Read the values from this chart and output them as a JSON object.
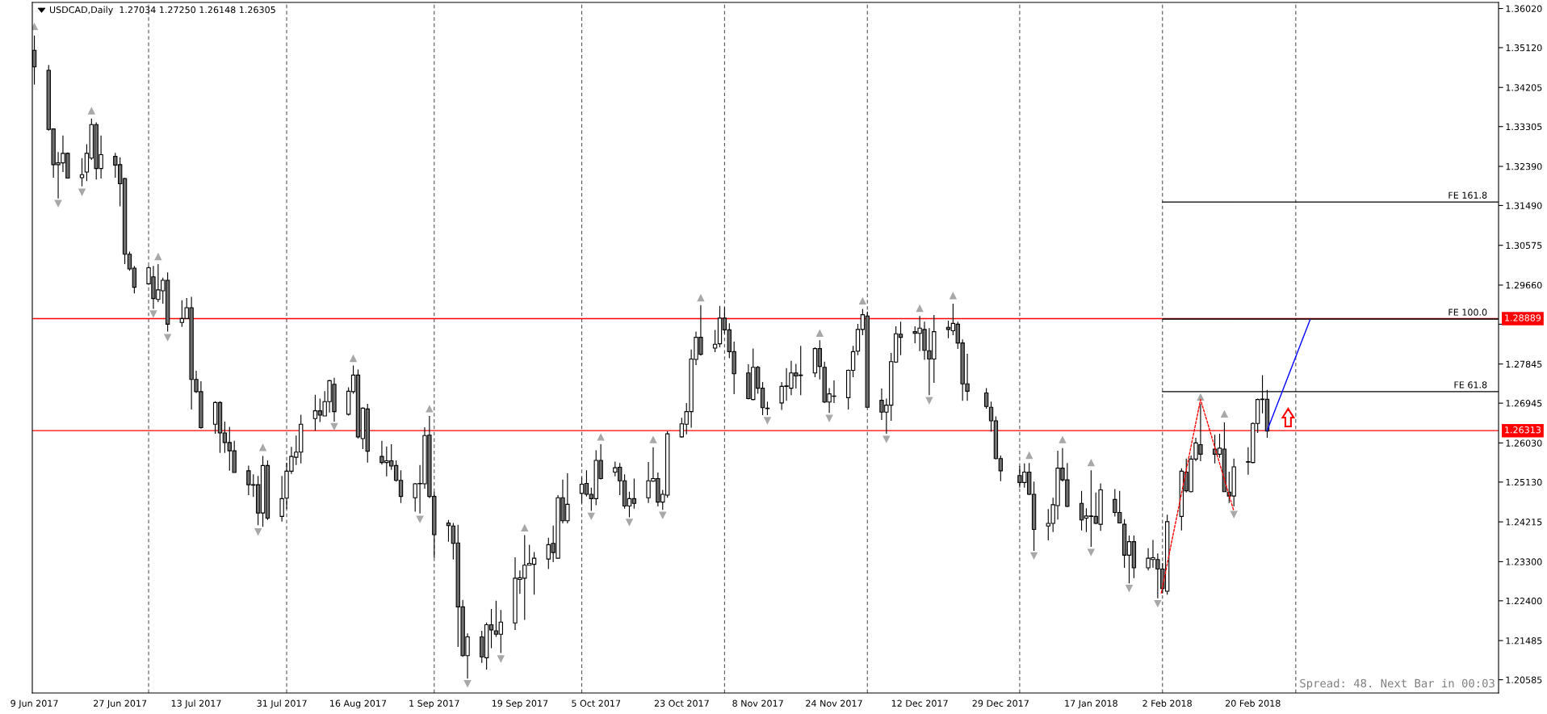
{
  "chart_data": {
    "type": "candlestick",
    "title": "USDCAD,Daily  1.27034 1.27250 1.26148 1.26305",
    "annotations": [
      "Spread: 48. Next Bar in 00:03"
    ],
    "x": [
      "2017-06-09",
      "2017-06-12",
      "2017-06-13",
      "2017-06-14",
      "2017-06-15",
      "2017-06-16",
      "2017-06-19",
      "2017-06-20",
      "2017-06-21",
      "2017-06-22",
      "2017-06-23",
      "2017-06-26",
      "2017-06-27",
      "2017-06-28",
      "2017-06-29",
      "2017-06-30",
      "2017-07-03",
      "2017-07-04",
      "2017-07-05",
      "2017-07-06",
      "2017-07-07",
      "2017-07-10",
      "2017-07-11",
      "2017-07-12",
      "2017-07-13",
      "2017-07-14",
      "2017-07-17",
      "2017-07-18",
      "2017-07-19",
      "2017-07-20",
      "2017-07-21",
      "2017-07-24",
      "2017-07-25",
      "2017-07-26",
      "2017-07-27",
      "2017-07-28",
      "2017-07-31",
      "2017-08-01",
      "2017-08-02",
      "2017-08-03",
      "2017-08-04",
      "2017-08-07",
      "2017-08-08",
      "2017-08-09",
      "2017-08-10",
      "2017-08-11",
      "2017-08-14",
      "2017-08-15",
      "2017-08-16",
      "2017-08-17",
      "2017-08-18",
      "2017-08-21",
      "2017-08-22",
      "2017-08-23",
      "2017-08-24",
      "2017-08-25",
      "2017-08-28",
      "2017-08-29",
      "2017-08-30",
      "2017-08-31",
      "2017-09-01",
      "2017-09-04",
      "2017-09-05",
      "2017-09-06",
      "2017-09-07",
      "2017-09-08",
      "2017-09-11",
      "2017-09-12",
      "2017-09-13",
      "2017-09-14",
      "2017-09-15",
      "2017-09-18",
      "2017-09-19",
      "2017-09-20",
      "2017-09-21",
      "2017-09-22",
      "2017-09-25",
      "2017-09-26",
      "2017-09-27",
      "2017-09-28",
      "2017-09-29",
      "2017-10-02",
      "2017-10-03",
      "2017-10-04",
      "2017-10-05",
      "2017-10-06",
      "2017-10-09",
      "2017-10-10",
      "2017-10-11",
      "2017-10-12",
      "2017-10-13",
      "2017-10-16",
      "2017-10-17",
      "2017-10-18",
      "2017-10-19",
      "2017-10-20",
      "2017-10-23",
      "2017-10-24",
      "2017-10-25",
      "2017-10-26",
      "2017-10-27",
      "2017-10-30",
      "2017-10-31",
      "2017-11-01",
      "2017-11-02",
      "2017-11-03",
      "2017-11-06",
      "2017-11-07",
      "2017-11-08",
      "2017-11-09",
      "2017-11-10",
      "2017-11-13",
      "2017-11-14",
      "2017-11-15",
      "2017-11-16",
      "2017-11-17",
      "2017-11-20",
      "2017-11-21",
      "2017-11-22",
      "2017-11-23",
      "2017-11-24",
      "2017-11-27",
      "2017-11-28",
      "2017-11-29",
      "2017-11-30",
      "2017-12-01",
      "2017-12-04",
      "2017-12-05",
      "2017-12-06",
      "2017-12-07",
      "2017-12-08",
      "2017-12-11",
      "2017-12-12",
      "2017-12-13",
      "2017-12-14",
      "2017-12-15",
      "2017-12-18",
      "2017-12-19",
      "2017-12-20",
      "2017-12-21",
      "2017-12-22",
      "2017-12-26",
      "2017-12-27",
      "2017-12-28",
      "2017-12-29",
      "2018-01-02",
      "2018-01-03",
      "2018-01-04",
      "2018-01-05",
      "2018-01-08",
      "2018-01-09",
      "2018-01-10",
      "2018-01-11",
      "2018-01-12",
      "2018-01-15",
      "2018-01-16",
      "2018-01-17",
      "2018-01-18",
      "2018-01-19",
      "2018-01-22",
      "2018-01-23",
      "2018-01-24",
      "2018-01-25",
      "2018-01-26",
      "2018-01-29",
      "2018-01-30",
      "2018-01-31",
      "2018-02-01",
      "2018-02-02",
      "2018-02-05",
      "2018-02-06",
      "2018-02-07",
      "2018-02-08",
      "2018-02-09",
      "2018-02-12",
      "2018-02-13",
      "2018-02-14",
      "2018-02-15",
      "2018-02-16",
      "2018-02-19",
      "2018-02-20",
      "2018-02-21",
      "2018-02-22",
      "2018-02-23"
    ],
    "ohlc": [
      [
        1.3506,
        1.354,
        1.3427,
        1.3468
      ],
      [
        1.346,
        1.3472,
        1.3321,
        1.3324
      ],
      [
        1.3325,
        1.3326,
        1.3213,
        1.3243
      ],
      [
        1.3243,
        1.3272,
        1.3165,
        1.3247
      ],
      [
        1.3247,
        1.331,
        1.3226,
        1.3269
      ],
      [
        1.3269,
        1.3271,
        1.3211,
        1.3212
      ],
      [
        1.3213,
        1.3258,
        1.3193,
        1.322
      ],
      [
        1.3226,
        1.329,
        1.3205,
        1.3269
      ],
      [
        1.3258,
        1.3349,
        1.3254,
        1.3335
      ],
      [
        1.3335,
        1.334,
        1.3209,
        1.3234
      ],
      [
        1.3234,
        1.331,
        1.3211,
        1.3266
      ],
      [
        1.3262,
        1.327,
        1.3213,
        1.3242
      ],
      [
        1.3243,
        1.326,
        1.3147,
        1.3199
      ],
      [
        1.3211,
        1.3213,
        1.3014,
        1.3037
      ],
      [
        1.3037,
        1.3043,
        1.2999,
        1.3003
      ],
      [
        1.3005,
        1.301,
        1.2947,
        1.2961
      ],
      [
        1.2969,
        1.301,
        1.2967,
        1.3006
      ],
      [
        1.2985,
        1.301,
        1.2911,
        1.2935
      ],
      [
        1.2933,
        1.3014,
        1.2927,
        1.2955
      ],
      [
        1.2953,
        1.2983,
        1.2923,
        1.2977
      ],
      [
        1.2977,
        1.2995,
        1.2859,
        1.2876
      ],
      [
        1.288,
        1.2931,
        1.287,
        1.2889
      ],
      [
        1.2889,
        1.2936,
        1.2888,
        1.2914
      ],
      [
        1.2914,
        1.2939,
        1.268,
        1.2749
      ],
      [
        1.2749,
        1.2769,
        1.2718,
        1.2721
      ],
      [
        1.2721,
        1.2745,
        1.2636,
        1.2638
      ],
      [
        1.2646,
        1.2699,
        1.2624,
        1.2696
      ],
      [
        1.2696,
        1.2699,
        1.258,
        1.2626
      ],
      [
        1.2626,
        1.2652,
        1.258,
        1.2604
      ],
      [
        1.2604,
        1.264,
        1.2539,
        1.2585
      ],
      [
        1.2585,
        1.2608,
        1.2534,
        1.2535
      ],
      [
        1.2539,
        1.2551,
        1.2483,
        1.2507
      ],
      [
        1.2507,
        1.2531,
        1.2479,
        1.2506
      ],
      [
        1.2507,
        1.2527,
        1.2414,
        1.2442
      ],
      [
        1.2442,
        1.2573,
        1.241,
        1.2551
      ],
      [
        1.2551,
        1.2563,
        1.2426,
        1.243
      ],
      [
        1.2434,
        1.2527,
        1.2422,
        1.2475
      ],
      [
        1.2476,
        1.2558,
        1.2451,
        1.2538
      ],
      [
        1.2538,
        1.2594,
        1.2532,
        1.2572
      ],
      [
        1.257,
        1.262,
        1.2552,
        1.2582
      ],
      [
        1.2582,
        1.2668,
        1.2556,
        1.2646
      ],
      [
        1.2659,
        1.2714,
        1.2631,
        1.2677
      ],
      [
        1.2677,
        1.2705,
        1.2651,
        1.2667
      ],
      [
        1.2665,
        1.2722,
        1.2664,
        1.2698
      ],
      [
        1.2698,
        1.2748,
        1.2673,
        1.2746
      ],
      [
        1.2738,
        1.2753,
        1.2652,
        1.2675
      ],
      [
        1.2669,
        1.2731,
        1.2666,
        1.2722
      ],
      [
        1.2721,
        1.2781,
        1.2716,
        1.2759
      ],
      [
        1.2759,
        1.2772,
        1.2613,
        1.2617
      ],
      [
        1.2613,
        1.2685,
        1.2589,
        1.2683
      ],
      [
        1.2681,
        1.2693,
        1.2558,
        1.2584
      ],
      [
        1.2572,
        1.2608,
        1.2553,
        1.2558
      ],
      [
        1.2558,
        1.2595,
        1.2526,
        1.2562
      ],
      [
        1.2562,
        1.26,
        1.2541,
        1.255
      ],
      [
        1.2551,
        1.2563,
        1.2514,
        1.2517
      ],
      [
        1.2517,
        1.254,
        1.2465,
        1.248
      ],
      [
        1.2477,
        1.2511,
        1.2445,
        1.2509
      ],
      [
        1.251,
        1.2552,
        1.2441,
        1.2509
      ],
      [
        1.2509,
        1.2639,
        1.2498,
        1.262
      ],
      [
        1.2621,
        1.2665,
        1.2476,
        1.248
      ],
      [
        1.248,
        1.2491,
        1.2339,
        1.2392
      ],
      [
        1.2419,
        1.2426,
        1.2376,
        1.2413
      ],
      [
        1.2412,
        1.2419,
        1.2335,
        1.2372
      ],
      [
        1.2373,
        1.2415,
        1.2134,
        1.2226
      ],
      [
        1.2226,
        1.2242,
        1.2111,
        1.2114
      ],
      [
        1.2114,
        1.2165,
        1.2061,
        1.2157
      ],
      [
        1.2157,
        1.2171,
        1.2097,
        1.2111
      ],
      [
        1.2109,
        1.219,
        1.2082,
        1.2185
      ],
      [
        1.2185,
        1.2221,
        1.2131,
        1.2173
      ],
      [
        1.2171,
        1.224,
        1.2157,
        1.2163
      ],
      [
        1.2163,
        1.2219,
        1.212,
        1.2191
      ],
      [
        1.2189,
        1.234,
        1.2173,
        1.2292
      ],
      [
        1.2289,
        1.231,
        1.2256,
        1.2293
      ],
      [
        1.2292,
        1.2391,
        1.2196,
        1.2322
      ],
      [
        1.2322,
        1.2369,
        1.2321,
        1.2326
      ],
      [
        1.2324,
        1.2352,
        1.2254,
        1.2338
      ],
      [
        1.2336,
        1.2385,
        1.2313,
        1.2369
      ],
      [
        1.2372,
        1.2413,
        1.2329,
        1.2351
      ],
      [
        1.2338,
        1.2483,
        1.2338,
        1.2477
      ],
      [
        1.2477,
        1.2519,
        1.2418,
        1.2424
      ],
      [
        1.2424,
        1.2533,
        1.2418,
        1.2462
      ],
      [
        1.2487,
        1.2524,
        1.2464,
        1.2508
      ],
      [
        1.251,
        1.254,
        1.248,
        1.2485
      ],
      [
        1.2485,
        1.25,
        1.2447,
        1.2475
      ],
      [
        1.2475,
        1.2586,
        1.246,
        1.2563
      ],
      [
        1.2563,
        1.26,
        1.2519,
        1.2521
      ],
      [
        1.2536,
        1.256,
        1.2526,
        1.2546
      ],
      [
        1.2547,
        1.2557,
        1.2483,
        1.2516
      ],
      [
        1.2516,
        1.2531,
        1.2452,
        1.2458
      ],
      [
        1.2458,
        1.2491,
        1.2432,
        1.2475
      ],
      [
        1.2475,
        1.2521,
        1.2452,
        1.2464
      ],
      [
        1.2477,
        1.2559,
        1.2465,
        1.2516
      ],
      [
        1.2515,
        1.2593,
        1.2513,
        1.2521
      ],
      [
        1.2521,
        1.2535,
        1.2457,
        1.2467
      ],
      [
        1.2467,
        1.2495,
        1.2449,
        1.2485
      ],
      [
        1.2483,
        1.263,
        1.2477,
        1.2624
      ],
      [
        1.2617,
        1.2661,
        1.2615,
        1.2647
      ],
      [
        1.2646,
        1.2695,
        1.2623,
        1.2675
      ],
      [
        1.2675,
        1.2818,
        1.2638,
        1.2796
      ],
      [
        1.2795,
        1.2859,
        1.2782,
        1.2846
      ],
      [
        1.2846,
        1.292,
        1.2804,
        1.2807
      ],
      [
        1.2821,
        1.2863,
        1.2812,
        1.283
      ],
      [
        1.2831,
        1.2918,
        1.2823,
        1.289
      ],
      [
        1.289,
        1.2915,
        1.2854,
        1.2863
      ],
      [
        1.2863,
        1.2878,
        1.2798,
        1.2813
      ],
      [
        1.2813,
        1.2836,
        1.2715,
        1.2762
      ],
      [
        1.2764,
        1.2784,
        1.2703,
        1.2705
      ],
      [
        1.2703,
        1.282,
        1.2701,
        1.2777
      ],
      [
        1.2777,
        1.278,
        1.2716,
        1.2729
      ],
      [
        1.2729,
        1.2743,
        1.2667,
        1.2684
      ],
      [
        1.2683,
        1.2698,
        1.2667,
        1.2682
      ],
      [
        1.2695,
        1.2743,
        1.2679,
        1.2733
      ],
      [
        1.2733,
        1.2775,
        1.27,
        1.2734
      ],
      [
        1.2729,
        1.2792,
        1.2713,
        1.2764
      ],
      [
        1.2764,
        1.2785,
        1.2728,
        1.2757
      ],
      [
        1.2759,
        1.2826,
        1.2713,
        1.2758
      ],
      [
        1.2764,
        1.2823,
        1.2754,
        1.282
      ],
      [
        1.282,
        1.2839,
        1.2749,
        1.2779
      ],
      [
        1.2777,
        1.279,
        1.2695,
        1.2697
      ],
      [
        1.2697,
        1.2729,
        1.2672,
        1.2716
      ],
      [
        1.2711,
        1.2747,
        1.2695,
        1.271
      ],
      [
        1.2707,
        1.2772,
        1.268,
        1.277
      ],
      [
        1.277,
        1.2826,
        1.2754,
        1.2813
      ],
      [
        1.2814,
        1.2877,
        1.2805,
        1.2864
      ],
      [
        1.2864,
        1.2911,
        1.2851,
        1.2898
      ],
      [
        1.2895,
        1.2905,
        1.2684,
        1.2685
      ],
      [
        1.2701,
        1.2728,
        1.2656,
        1.2674
      ],
      [
        1.2674,
        1.2705,
        1.2624,
        1.269
      ],
      [
        1.269,
        1.281,
        1.2654,
        1.279
      ],
      [
        1.2789,
        1.2871,
        1.2787,
        1.2854
      ],
      [
        1.2853,
        1.2882,
        1.2805,
        1.2846
      ],
      [
        1.2859,
        1.2871,
        1.2832,
        1.2855
      ],
      [
        1.2855,
        1.2895,
        1.2814,
        1.2867
      ],
      [
        1.2864,
        1.2882,
        1.2794,
        1.2816
      ],
      [
        1.2815,
        1.2867,
        1.2713,
        1.2796
      ],
      [
        1.2796,
        1.2897,
        1.2741,
        1.2859
      ],
      [
        1.2869,
        1.2884,
        1.2844,
        1.2864
      ],
      [
        1.2861,
        1.2923,
        1.2851,
        1.2878
      ],
      [
        1.2876,
        1.2882,
        1.2819,
        1.2833
      ],
      [
        1.2833,
        1.2841,
        1.27,
        1.2739
      ],
      [
        1.2739,
        1.2808,
        1.27,
        1.2722
      ],
      [
        1.2718,
        1.2729,
        1.2682,
        1.2687
      ],
      [
        1.2685,
        1.2698,
        1.2629,
        1.2654
      ],
      [
        1.2654,
        1.2664,
        1.2565,
        1.2567
      ],
      [
        1.2567,
        1.2574,
        1.2515,
        1.2539
      ],
      [
        1.2528,
        1.255,
        1.25,
        1.2512
      ],
      [
        1.2512,
        1.2556,
        1.25,
        1.2536
      ],
      [
        1.2536,
        1.2557,
        1.2483,
        1.2485
      ],
      [
        1.2485,
        1.2514,
        1.2355,
        1.2404
      ],
      [
        1.2412,
        1.2451,
        1.2379,
        1.2418
      ],
      [
        1.2418,
        1.2477,
        1.2398,
        1.2461
      ],
      [
        1.2459,
        1.2585,
        1.2427,
        1.2545
      ],
      [
        1.2545,
        1.2591,
        1.2514,
        1.2518
      ],
      [
        1.2518,
        1.2557,
        1.2455,
        1.2457
      ],
      [
        1.2464,
        1.2493,
        1.2402,
        1.2426
      ],
      [
        1.243,
        1.2453,
        1.2398,
        1.2435
      ],
      [
        1.2435,
        1.254,
        1.2364,
        1.2434
      ],
      [
        1.2434,
        1.2489,
        1.2416,
        1.2418
      ],
      [
        1.2416,
        1.251,
        1.2401,
        1.2495
      ],
      [
        1.2473,
        1.2497,
        1.2434,
        1.2443
      ],
      [
        1.2443,
        1.2493,
        1.2418,
        1.2419
      ],
      [
        1.2416,
        1.2428,
        1.2316,
        1.2345
      ],
      [
        1.2345,
        1.239,
        1.228,
        1.2376
      ],
      [
        1.2376,
        1.239,
        1.2292,
        1.2316
      ],
      [
        1.2316,
        1.2361,
        1.231,
        1.2338
      ],
      [
        1.2335,
        1.238,
        1.2316,
        1.2339
      ],
      [
        1.2335,
        1.2349,
        1.2246,
        1.2313
      ],
      [
        1.2313,
        1.2327,
        1.2257,
        1.2268
      ],
      [
        1.2262,
        1.2438,
        1.2254,
        1.2422
      ],
      [
        1.2434,
        1.2545,
        1.2402,
        1.2538
      ],
      [
        1.2536,
        1.2567,
        1.2489,
        1.2493
      ],
      [
        1.2491,
        1.2574,
        1.2489,
        1.2566
      ],
      [
        1.2566,
        1.2615,
        1.2561,
        1.2603
      ],
      [
        1.2599,
        1.2693,
        1.2561,
        1.2577
      ],
      [
        1.2589,
        1.2622,
        1.2556,
        1.2577
      ],
      [
        1.2577,
        1.2624,
        1.2569,
        1.2591
      ],
      [
        1.2589,
        1.265,
        1.249,
        1.2491
      ],
      [
        1.249,
        1.2537,
        1.2465,
        1.2481
      ],
      [
        1.2481,
        1.2567,
        1.2457,
        1.2548
      ],
      [
        1.2559,
        1.2593,
        1.253,
        1.256
      ],
      [
        1.2558,
        1.265,
        1.2556,
        1.2648
      ],
      [
        1.2648,
        1.2705,
        1.2626,
        1.2703
      ],
      [
        1.2704,
        1.2759,
        1.2671,
        1.2703
      ],
      [
        1.27034,
        1.2725,
        1.26148,
        1.26305
      ]
    ],
    "color": "#000000",
    "colors": [
      "#707070",
      "#707070",
      "#707070",
      "#ffffff",
      "#ffffff",
      "#707070",
      "#ffffff",
      "#ffffff",
      "#ffffff",
      "#707070",
      "#ffffff",
      "#707070",
      "#707070",
      "#707070",
      "#707070",
      "#707070",
      "#ffffff",
      "#707070",
      "#ffffff",
      "#ffffff",
      "#707070",
      "#ffffff",
      "#ffffff",
      "#707070",
      "#707070",
      "#707070",
      "#ffffff",
      "#707070",
      "#707070",
      "#707070",
      "#707070",
      "#707070",
      "#707070",
      "#707070",
      "#ffffff",
      "#707070",
      "#ffffff",
      "#ffffff",
      "#ffffff",
      "#ffffff",
      "#ffffff",
      "#ffffff",
      "#707070",
      "#ffffff",
      "#ffffff",
      "#707070",
      "#ffffff",
      "#ffffff",
      "#707070",
      "#ffffff",
      "#707070",
      "#707070",
      "#ffffff",
      "#707070",
      "#707070",
      "#707070",
      "#ffffff",
      "#707070",
      "#ffffff",
      "#707070",
      "#707070",
      "#707070",
      "#707070",
      "#707070",
      "#707070",
      "#ffffff",
      "#707070",
      "#ffffff",
      "#707070",
      "#707070",
      "#ffffff",
      "#ffffff",
      "#ffffff",
      "#ffffff",
      "#ffffff",
      "#ffffff",
      "#ffffff",
      "#707070",
      "#ffffff",
      "#707070",
      "#ffffff",
      "#ffffff",
      "#707070",
      "#707070",
      "#ffffff",
      "#707070",
      "#ffffff",
      "#707070",
      "#707070",
      "#ffffff",
      "#707070",
      "#ffffff",
      "#ffffff",
      "#707070",
      "#ffffff",
      "#ffffff",
      "#ffffff",
      "#ffffff",
      "#ffffff",
      "#ffffff",
      "#707070",
      "#ffffff",
      "#ffffff",
      "#707070",
      "#707070",
      "#707070",
      "#707070",
      "#ffffff",
      "#707070",
      "#707070",
      "#707070",
      "#ffffff",
      "#ffffff",
      "#ffffff",
      "#707070",
      "#707070",
      "#ffffff",
      "#707070",
      "#707070",
      "#ffffff",
      "#707070",
      "#ffffff",
      "#ffffff",
      "#ffffff",
      "#ffffff",
      "#707070",
      "#707070",
      "#ffffff",
      "#ffffff",
      "#ffffff",
      "#707070",
      "#707070",
      "#ffffff",
      "#707070",
      "#707070",
      "#ffffff",
      "#707070",
      "#ffffff",
      "#707070",
      "#707070",
      "#707070",
      "#707070",
      "#707070",
      "#707070",
      "#707070",
      "#707070",
      "#ffffff",
      "#707070",
      "#707070",
      "#ffffff",
      "#ffffff",
      "#ffffff",
      "#707070",
      "#707070",
      "#707070",
      "#ffffff",
      "#707070",
      "#707070",
      "#ffffff",
      "#707070",
      "#707070",
      "#707070",
      "#ffffff",
      "#707070",
      "#ffffff",
      "#ffffff",
      "#707070",
      "#707070",
      "#ffffff",
      "#ffffff",
      "#707070",
      "#ffffff",
      "#ffffff",
      "#707070",
      "#707070",
      "#ffffff",
      "#707070",
      "#707070",
      "#ffffff",
      "#ffffff",
      "#ffffff",
      "#ffffff",
      "#707070",
      "#707070"
    ],
    "series": [
      {
        "type": "scatter",
        "marker": "triangle",
        "color": "#a8a8a8",
        "x": [
          "2017-06-09",
          "2017-06-21",
          "2017-07-05",
          "2017-07-27",
          "2017-08-15",
          "2017-08-31",
          "2017-09-20",
          "2017-10-06",
          "2017-10-17",
          "2017-10-27",
          "2017-11-21",
          "2017-11-30",
          "2017-12-12",
          "2017-12-19",
          "2018-01-04",
          "2018-01-11",
          "2018-01-17",
          "2018-02-09",
          "2018-02-14"
        ],
        "values": [
          1.3561,
          1.3367,
          1.3032,
          1.2593,
          1.2798,
          1.2682,
          1.2408,
          1.2617,
          1.2611,
          1.2937,
          1.2856,
          1.293,
          1.2913,
          1.2942,
          1.2575,
          1.2611,
          1.2558,
          1.2709,
          1.267
        ]
      },
      {
        "type": "scatter",
        "marker": "triangle-down",
        "color": "#a8a8a8",
        "x": [
          "2017-06-14",
          "2017-06-19",
          "2017-07-04",
          "2017-07-07",
          "2017-07-26",
          "2017-08-11",
          "2017-08-29",
          "2017-09-08",
          "2017-09-15",
          "2017-10-04",
          "2017-10-12",
          "2017-10-19",
          "2017-11-10",
          "2017-11-23",
          "2017-12-05",
          "2017-12-14",
          "2018-01-05",
          "2018-01-17",
          "2018-01-25",
          "2018-01-31",
          "2018-02-16"
        ],
        "values": [
          1.3153,
          1.3179,
          1.2899,
          1.2845,
          1.2398,
          1.264,
          1.2427,
          1.2049,
          1.2106,
          1.2434,
          1.242,
          1.2436,
          1.2654,
          1.2659,
          1.2611,
          1.27,
          1.2343,
          1.2351,
          1.2268,
          1.2233,
          1.2438
        ]
      },
      {
        "type": "line",
        "name": "FE 161.8",
        "color": "#000000",
        "line_style": "solid",
        "x": [
          "2018-02-01",
          "2018-04-12T14:30"
        ],
        "values": [
          1.3157,
          1.3157
        ]
      },
      {
        "type": "line",
        "name": "FE 100.0",
        "color": "#000000",
        "line_style": "solid",
        "x": [
          "2018-02-01",
          "2018-04-12T14:30"
        ],
        "values": [
          1.2888,
          1.2888
        ]
      },
      {
        "type": "line",
        "name": "FE 61.8",
        "color": "#000000",
        "line_style": "solid",
        "x": [
          "2018-02-01",
          "2018-04-12T14:30"
        ],
        "values": [
          1.2721,
          1.2721
        ]
      },
      {
        "type": "line",
        "color": "#ff0000",
        "line_style": "dotted",
        "x": [
          "2018-01-31T18:00",
          "2018-02-09",
          "2018-02-16"
        ],
        "values": [
          1.2258,
          1.2703,
          1.2446
        ]
      },
      {
        "type": "line",
        "color": "#0000ff",
        "line_style": "solid",
        "x": [
          "2018-02-23",
          "2018-03-04"
        ],
        "values": [
          1.2632,
          1.2886
        ]
      }
    ],
    "ref_lines": [
      {
        "axis": "x",
        "value": "2017-07-03",
        "color": "#555555",
        "line_style": "dashed"
      },
      {
        "axis": "x",
        "value": "2017-08-01",
        "color": "#555555",
        "line_style": "dashed"
      },
      {
        "axis": "x",
        "value": "2017-09-01",
        "color": "#555555",
        "line_style": "dashed"
      },
      {
        "axis": "x",
        "value": "2017-10-02",
        "color": "#555555",
        "line_style": "dashed"
      },
      {
        "axis": "x",
        "value": "2017-11-01",
        "color": "#555555",
        "line_style": "dashed"
      },
      {
        "axis": "x",
        "value": "2017-12-01",
        "color": "#555555",
        "line_style": "dashed"
      },
      {
        "axis": "x",
        "value": "2018-01-02",
        "color": "#555555",
        "line_style": "dashed"
      },
      {
        "axis": "x",
        "value": "2018-02-01",
        "color": "#555555",
        "line_style": "dashed"
      },
      {
        "axis": "x",
        "value": "2018-03-01",
        "color": "#555555",
        "line_style": "dashed"
      },
      {
        "axis": "y",
        "value": 1.28889,
        "label": "1.28889",
        "color": "#ff0000"
      },
      {
        "axis": "y",
        "value": 1.26313,
        "label": "1.26313",
        "color": "#ff0000"
      }
    ],
    "xlim": [
      "2017-06-08T13:30",
      "2018-04-12T14:30"
    ],
    "xticks": [
      {
        "value": "2017-06-09",
        "label": "9 Jun 2017"
      },
      {
        "value": "2017-06-27",
        "label": "27 Jun 2017"
      },
      {
        "value": "2017-07-13",
        "label": "13 Jul 2017"
      },
      {
        "value": "2017-07-31",
        "label": "31 Jul 2017"
      },
      {
        "value": "2017-08-16",
        "label": "16 Aug 2017"
      },
      {
        "value": "2017-09-01",
        "label": "1 Sep 2017"
      },
      {
        "value": "2017-09-19",
        "label": "19 Sep 2017"
      },
      {
        "value": "2017-10-05",
        "label": "5 Oct 2017"
      },
      {
        "value": "2017-10-23",
        "label": "23 Oct 2017"
      },
      {
        "value": "2017-11-08",
        "label": "8 Nov 2017"
      },
      {
        "value": "2017-11-24",
        "label": "24 Nov 2017"
      },
      {
        "value": "2017-12-12",
        "label": "12 Dec 2017"
      },
      {
        "value": "2017-12-29",
        "label": "29 Dec 2017"
      },
      {
        "value": "2018-01-17",
        "label": "17 Jan 2018"
      },
      {
        "value": "2018-02-02",
        "label": "2 Feb 2018"
      },
      {
        "value": "2018-02-20",
        "label": "20 Feb 2018"
      }
    ],
    "ylim": [
      1.2028,
      1.3616
    ],
    "yticks": [
      {
        "value": 1.3602,
        "label": "1.36020"
      },
      {
        "value": 1.3512,
        "label": "1.35120"
      },
      1.34205,
      1.33305,
      {
        "value": 1.3239,
        "label": "1.32390"
      },
      {
        "value": 1.3149,
        "label": "1.31490"
      },
      1.30575,
      {
        "value": 1.2966,
        "label": "1.29660"
      },
      {
        "value": 1.2876,
        "label": null
      },
      1.27845,
      1.26945,
      {
        "value": 1.2603,
        "label": "1.26030"
      },
      {
        "value": 1.2513,
        "label": "1.25130"
      },
      1.24215,
      {
        "value": 1.233,
        "label": "1.23300"
      },
      {
        "value": 1.224,
        "label": "1.22400"
      },
      1.21485,
      1.20585
    ],
    "grid": false,
    "legend": false
  }
}
